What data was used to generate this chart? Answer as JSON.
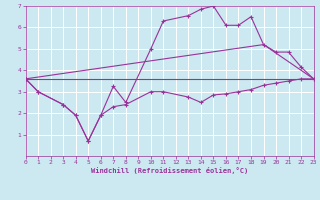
{
  "bg_color": "#cce8f0",
  "grid_color": "#ffffff",
  "line_color": "#993399",
  "marker": "+",
  "xlabel": "Windchill (Refroidissement éolien,°C)",
  "xlim": [
    0,
    23
  ],
  "ylim": [
    0,
    7
  ],
  "xticks": [
    0,
    1,
    2,
    3,
    4,
    5,
    6,
    7,
    8,
    9,
    10,
    11,
    12,
    13,
    14,
    15,
    16,
    17,
    18,
    19,
    20,
    21,
    22,
    23
  ],
  "yticks": [
    1,
    2,
    3,
    4,
    5,
    6,
    7
  ],
  "line1_x": [
    0,
    1,
    3,
    4,
    5,
    6,
    7,
    8,
    10,
    11,
    13,
    14,
    15,
    16,
    17,
    18,
    19,
    20,
    21,
    22,
    23
  ],
  "line1_y": [
    3.6,
    3.0,
    2.4,
    1.9,
    0.7,
    1.9,
    3.25,
    2.5,
    5.0,
    6.3,
    6.55,
    6.85,
    7.0,
    6.1,
    6.1,
    6.5,
    5.2,
    4.85,
    4.85,
    4.15,
    3.6
  ],
  "line2_x": [
    0,
    1,
    3,
    4,
    5,
    6,
    7,
    8,
    10,
    11,
    13,
    14,
    15,
    16,
    17,
    18,
    19,
    20,
    21,
    22,
    23
  ],
  "line2_y": [
    3.6,
    3.0,
    2.4,
    1.9,
    0.7,
    1.9,
    2.3,
    2.4,
    3.0,
    3.0,
    2.75,
    2.5,
    2.85,
    2.9,
    3.0,
    3.1,
    3.3,
    3.4,
    3.5,
    3.6,
    3.6
  ],
  "line3_x": [
    0,
    23
  ],
  "line3_y": [
    3.6,
    3.6
  ],
  "line4_x": [
    0,
    19,
    23
  ],
  "line4_y": [
    3.6,
    5.2,
    3.6
  ]
}
